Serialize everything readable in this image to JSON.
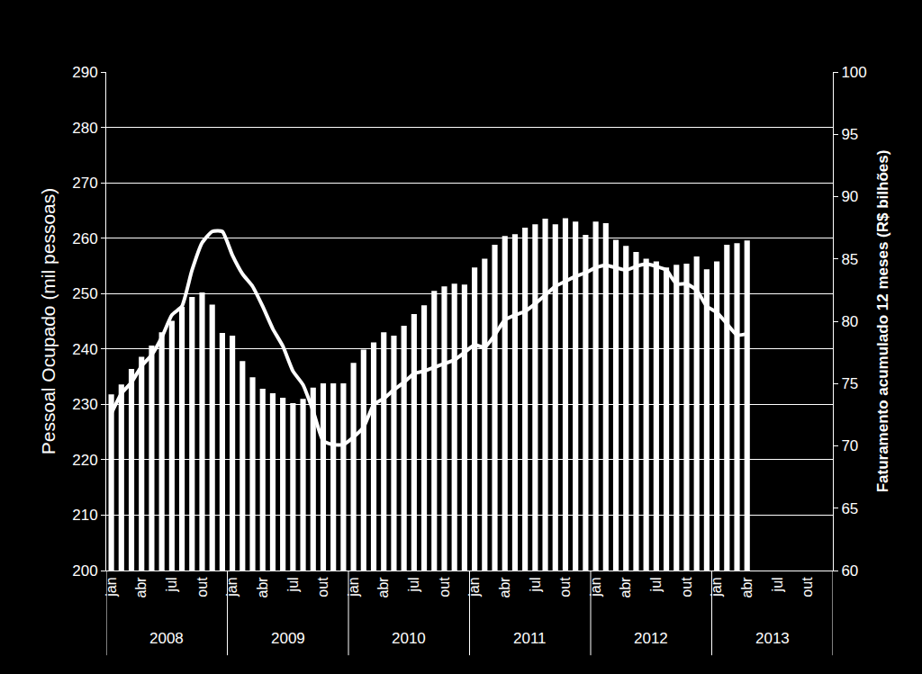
{
  "chart_data": {
    "type": "bar",
    "ylabel": "Pessoal Ocupado (mil pessoas)",
    "y2label": "Faturamento acumulado 12 meses (R$ bilhões)",
    "categories": [
      "jan",
      null,
      null,
      "abr",
      null,
      null,
      "jul",
      null,
      null,
      "out",
      null,
      null,
      "jan",
      null,
      null,
      "abr",
      null,
      null,
      "jul",
      null,
      null,
      "out",
      null,
      null,
      "jan",
      null,
      null,
      "abr",
      null,
      null,
      "jul",
      null,
      null,
      "out",
      null,
      null,
      "jan",
      null,
      null,
      "abr",
      null,
      null,
      "jul",
      null,
      null,
      "out",
      null,
      null,
      "jan",
      null,
      null,
      "abr",
      null,
      null,
      "jul",
      null,
      null,
      "out",
      null,
      null,
      "jan",
      null,
      null,
      "abr",
      null,
      null,
      "jul",
      null,
      null,
      "out",
      null,
      null
    ],
    "x_groups": [
      {
        "label": "2008",
        "count": 12
      },
      {
        "label": "2009",
        "count": 12
      },
      {
        "label": "2010",
        "count": 12
      },
      {
        "label": "2011",
        "count": 12
      },
      {
        "label": "2012",
        "count": 12
      },
      {
        "label": "2013",
        "count": 12
      }
    ],
    "series": [
      {
        "type": "bar",
        "color": "#ffffff",
        "values": [
          231.8,
          233.6,
          236.4,
          238.6,
          240.6,
          243.0,
          245.1,
          247.6,
          249.4,
          250.2,
          248.0,
          242.9,
          242.4,
          237.8,
          234.9,
          232.8,
          232.0,
          231.2,
          230.2,
          231.0,
          233.0,
          233.8,
          233.8,
          233.8,
          237.5,
          239.9,
          241.2,
          243.0,
          242.4,
          244.2,
          246.3,
          247.9,
          250.5,
          251.3,
          251.8,
          251.6,
          254.7,
          256.3,
          258.8,
          260.4,
          260.7,
          261.9,
          262.5,
          263.5,
          262.5,
          263.6,
          263.0,
          260.6,
          263.0,
          262.7,
          259.7,
          258.6,
          257.5,
          256.3,
          255.8,
          254.7,
          255.2,
          255.4,
          256.7,
          254.4,
          255.8,
          258.8,
          259.1,
          259.6,
          null,
          null,
          null,
          null,
          null,
          null,
          null,
          null
        ]
      },
      {
        "type": "line",
        "axis": "y2",
        "color": "#ffffff",
        "values": [
          72.6,
          74.2,
          75.1,
          76.4,
          77.3,
          78.7,
          80.5,
          81.2,
          84.1,
          86.3,
          87.2,
          87.2,
          85.3,
          83.8,
          82.8,
          81.2,
          79.4,
          78.0,
          76.0,
          74.9,
          72.8,
          70.4,
          70.1,
          70.1,
          70.7,
          71.5,
          73.3,
          73.8,
          74.5,
          75.1,
          75.8,
          76.0,
          76.3,
          76.6,
          76.9,
          77.5,
          78.1,
          77.9,
          78.9,
          80.1,
          80.5,
          80.8,
          81.4,
          82.1,
          82.8,
          83.2,
          83.6,
          83.9,
          84.3,
          84.5,
          84.3,
          84.1,
          84.4,
          84.6,
          84.4,
          84.1,
          83.0,
          83.0,
          82.5,
          81.2,
          80.7,
          79.8,
          78.9,
          79.0,
          null,
          null,
          null,
          null,
          null,
          null,
          null,
          null
        ]
      }
    ],
    "ylim": [
      200,
      290
    ],
    "yticks": [
      200,
      210,
      220,
      230,
      240,
      250,
      260,
      270,
      280,
      290
    ],
    "y2lim": [
      60,
      100
    ],
    "y2ticks": [
      60,
      65,
      70,
      75,
      80,
      85,
      90,
      95,
      100
    ],
    "grid": true
  }
}
